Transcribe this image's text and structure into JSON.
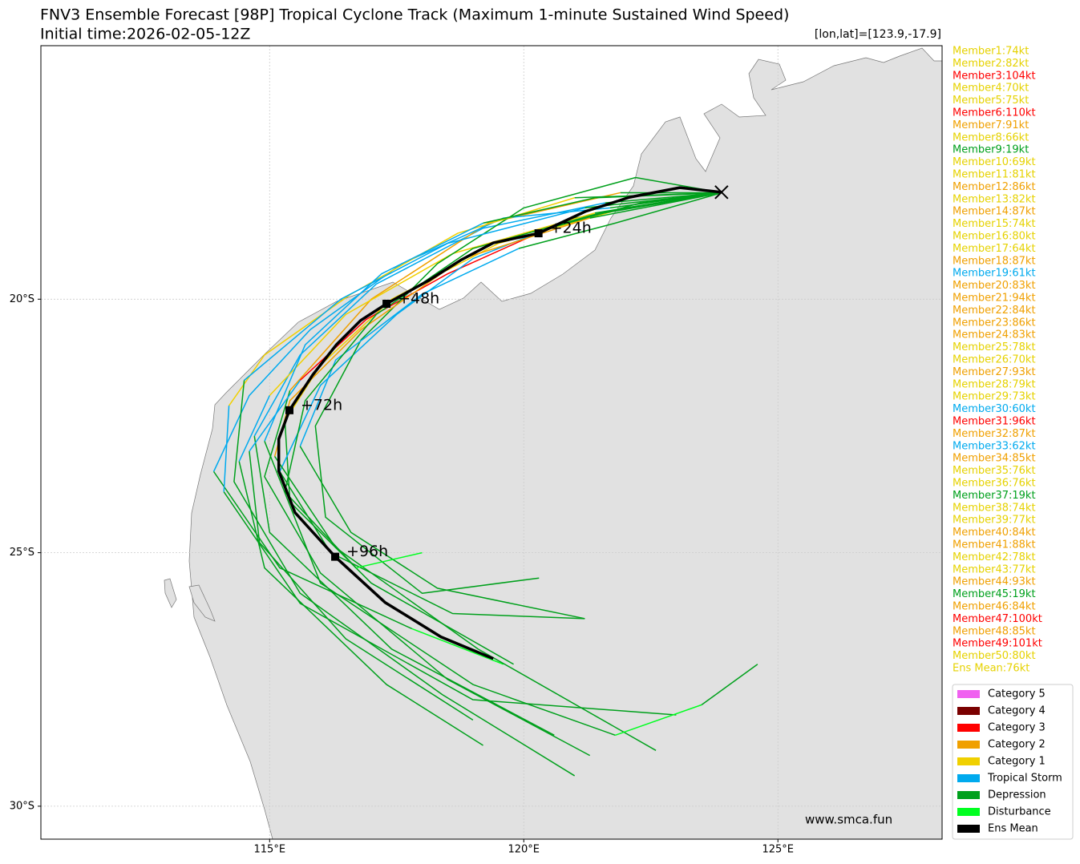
{
  "header": {
    "title": "FNV3 Ensemble Forecast [98P] Tropical Cyclone Track (Maximum 1-minute Sustained Wind Speed)",
    "subtitle": "Initial time:2026-02-05-12Z",
    "position": "[lon,lat]=[123.9,-17.9]",
    "watermark": "www.smca.fun"
  },
  "map": {
    "lonlim": [
      110.5,
      128.23
    ],
    "latlim": [
      -30.65,
      -15.0
    ],
    "grid": true,
    "xticks": [
      {
        "value": 115,
        "label": "115°E"
      },
      {
        "value": 120,
        "label": "120°E"
      },
      {
        "value": 125,
        "label": "125°E"
      }
    ],
    "yticks": [
      {
        "value": -20,
        "label": "20°S"
      },
      {
        "value": -25,
        "label": "25°S"
      },
      {
        "value": -30,
        "label": "30°S"
      }
    ],
    "member_tracks": [
      {
        "color": "#00a01c",
        "lon": [
          123.9,
          121.6
        ],
        "lat": [
          -17.9,
          -18.1
        ]
      },
      {
        "color": "#00aaee",
        "lon": [
          121.6,
          119.2,
          117.1,
          115.6,
          114.7
        ],
        "lat": [
          -18.1,
          -18.6,
          -19.7,
          -21.1,
          -22.7
        ]
      },
      {
        "color": "#00a01c",
        "lon": [
          114.7,
          115.0,
          117.4,
          120.6
        ],
        "lat": [
          -22.7,
          -24.6,
          -26.9,
          -28.6
        ]
      },
      {
        "color": "#00a01c",
        "lon": [
          123.9,
          122.0
        ],
        "lat": [
          -17.9,
          -18.2
        ]
      },
      {
        "color": "#f0d000",
        "lon": [
          122.0,
          119.5,
          117.4,
          116.0,
          115.3
        ],
        "lat": [
          -18.2,
          -18.9,
          -20.0,
          -21.3,
          -22.4
        ]
      },
      {
        "color": "#00a01c",
        "lon": [
          115.3,
          115.4,
          117.0,
          119.8
        ],
        "lat": [
          -22.4,
          -24.0,
          -25.6,
          -27.2
        ]
      },
      {
        "color": "#00a01c",
        "lon": [
          123.9,
          121.9
        ],
        "lat": [
          -17.9,
          -17.9
        ]
      },
      {
        "color": "#f0a000",
        "lon": [
          121.9,
          119.3,
          117.0,
          115.4
        ],
        "lat": [
          -17.9,
          -18.5,
          -20.0,
          -21.8
        ]
      },
      {
        "color": "#00a01c",
        "lon": [
          115.4,
          114.9,
          116.0,
          118.5,
          121.3
        ],
        "lat": [
          -21.8,
          -23.5,
          -25.4,
          -27.5,
          -29.0
        ]
      },
      {
        "color": "#00a01c",
        "lon": [
          123.9,
          122.3,
          120.5
        ],
        "lat": [
          -17.9,
          -18.1,
          -18.6
        ]
      },
      {
        "color": "#ff0000",
        "lon": [
          120.5,
          118.5,
          116.9,
          115.6
        ],
        "lat": [
          -18.6,
          -19.5,
          -20.4,
          -21.6
        ]
      },
      {
        "color": "#00aaee",
        "lon": [
          115.6,
          114.6
        ],
        "lat": [
          -21.6,
          -23.0
        ]
      },
      {
        "color": "#00a01c",
        "lon": [
          114.6,
          114.8,
          116.5,
          119.0
        ],
        "lat": [
          -23.0,
          -24.8,
          -26.7,
          -28.3
        ]
      },
      {
        "color": "#00a01c",
        "lon": [
          123.9,
          121.0
        ],
        "lat": [
          -17.9,
          -18.4
        ]
      },
      {
        "color": "#00aaee",
        "lon": [
          121.0,
          119.0,
          117.5,
          116.0,
          115.2
        ],
        "lat": [
          -18.4,
          -19.2,
          -20.3,
          -21.7,
          -23.4
        ]
      },
      {
        "color": "#00a01c",
        "lon": [
          115.2,
          116.2,
          118.6,
          121.2
        ],
        "lat": [
          -23.4,
          -25.0,
          -26.2,
          -26.3
        ]
      },
      {
        "color": "#00a01c",
        "lon": [
          123.9,
          121.4
        ],
        "lat": [
          -17.9,
          -18.3
        ]
      },
      {
        "color": "#f0d000",
        "lon": [
          121.4,
          118.6,
          116.5,
          115.0
        ],
        "lat": [
          -18.3,
          -19.1,
          -20.3,
          -21.9
        ]
      },
      {
        "color": "#00aaee",
        "lon": [
          115.0,
          114.4
        ],
        "lat": [
          -21.9,
          -23.2
        ]
      },
      {
        "color": "#00a01c",
        "lon": [
          114.4,
          114.9,
          117.3,
          119.2
        ],
        "lat": [
          -23.2,
          -25.3,
          -27.6,
          -28.8
        ]
      },
      {
        "color": "#00a01c",
        "lon": [
          123.9,
          122.2,
          120.0,
          118.3,
          116.8,
          115.9,
          116.1,
          118.0,
          120.3
        ],
        "lat": [
          -17.9,
          -17.6,
          -18.2,
          -19.3,
          -20.8,
          -22.5,
          -24.3,
          -25.8,
          -25.5
        ]
      },
      {
        "color": "#00a01c",
        "lon": [
          123.9,
          121.7
        ],
        "lat": [
          -17.9,
          -18.2
        ]
      },
      {
        "color": "#00aaee",
        "lon": [
          121.7,
          119.6,
          117.6,
          115.8,
          114.6,
          113.9
        ],
        "lat": [
          -18.2,
          -18.4,
          -19.3,
          -20.6,
          -21.9,
          -23.4
        ]
      },
      {
        "color": "#00a01c",
        "lon": [
          113.9,
          115.2,
          117.8
        ],
        "lat": [
          -23.4,
          -25.3,
          -26.5
        ]
      },
      {
        "color": "#00ff20",
        "lon": [
          117.8,
          119.6
        ],
        "lat": [
          -26.5,
          -27.2
        ]
      },
      {
        "color": "#00a01c",
        "lon": [
          123.9,
          121.3
        ],
        "lat": [
          -17.9,
          -18.4
        ]
      },
      {
        "color": "#f0a000",
        "lon": [
          121.3,
          118.8,
          116.8,
          115.4,
          115.1
        ],
        "lat": [
          -18.4,
          -19.2,
          -20.6,
          -22.0,
          -23.1
        ]
      },
      {
        "color": "#00a01c",
        "lon": [
          115.1,
          116.3,
          119.1,
          122.6
        ],
        "lat": [
          -23.1,
          -24.9,
          -26.9,
          -28.9
        ]
      },
      {
        "color": "#00a01c",
        "lon": [
          123.9,
          121.0
        ],
        "lat": [
          -17.9,
          -18.0
        ]
      },
      {
        "color": "#f0d000",
        "lon": [
          121.0,
          118.7,
          116.6,
          114.9,
          114.2
        ],
        "lat": [
          -18.0,
          -18.7,
          -19.9,
          -21.1,
          -22.1
        ]
      },
      {
        "color": "#00aaee",
        "lon": [
          114.2,
          114.1
        ],
        "lat": [
          -22.1,
          -23.8
        ]
      },
      {
        "color": "#00a01c",
        "lon": [
          114.1,
          115.6,
          119.0,
          123.0
        ],
        "lat": [
          -23.8,
          -26.0,
          -27.9,
          -28.2
        ]
      },
      {
        "color": "#00a01c",
        "lon": [
          123.9,
          121.8,
          119.9
        ],
        "lat": [
          -17.9,
          -18.5,
          -19.0
        ]
      },
      {
        "color": "#00aaee",
        "lon": [
          119.9,
          118.0,
          116.3,
          115.6
        ],
        "lat": [
          -19.0,
          -19.9,
          -21.2,
          -22.9
        ]
      },
      {
        "color": "#00a01c",
        "lon": [
          115.6,
          116.6,
          118.3,
          121.2
        ],
        "lat": [
          -22.9,
          -24.6,
          -25.7,
          -26.3
        ]
      },
      {
        "color": "#00a01c",
        "lon": [
          123.9,
          121.2
        ],
        "lat": [
          -17.9,
          -18.2
        ]
      },
      {
        "color": "#00aaee",
        "lon": [
          121.2,
          118.5,
          116.4,
          114.5
        ],
        "lat": [
          -18.2,
          -18.9,
          -20.0,
          -21.6
        ]
      },
      {
        "color": "#00a01c",
        "lon": [
          114.5,
          114.3,
          115.6,
          118.4,
          121.0
        ],
        "lat": [
          -21.6,
          -23.6,
          -25.8,
          -27.8,
          -29.4
        ]
      },
      {
        "color": "#00a01c",
        "lon": [
          123.9,
          121.5,
          119.0,
          117.1,
          115.7,
          115.3,
          116.7
        ],
        "lat": [
          -17.9,
          -18.3,
          -19.0,
          -20.3,
          -22.0,
          -23.8,
          -25.3
        ]
      },
      {
        "color": "#00ff20",
        "lon": [
          116.7,
          118.0
        ],
        "lat": [
          -25.3,
          -25.0
        ]
      },
      {
        "color": "#00a01c",
        "lon": [
          123.9,
          121.4,
          119.2
        ],
        "lat": [
          -17.9,
          -18.0,
          -18.5
        ]
      },
      {
        "color": "#00aaee",
        "lon": [
          119.2,
          117.2,
          115.7,
          114.9
        ],
        "lat": [
          -18.5,
          -19.5,
          -20.9,
          -22.8
        ]
      },
      {
        "color": "#00a01c",
        "lon": [
          114.9,
          116.0,
          119.0,
          121.8
        ],
        "lat": [
          -22.8,
          -25.6,
          -27.6,
          -28.6
        ]
      },
      {
        "color": "#00ff20",
        "lon": [
          121.8,
          123.5
        ],
        "lat": [
          -28.6,
          -28.0
        ]
      },
      {
        "color": "#00a01c",
        "lon": [
          123.5,
          124.6
        ],
        "lat": [
          -28.0,
          -27.2
        ]
      }
    ],
    "ens_mean": {
      "color": "#000000",
      "lon": [
        123.89,
        123.07,
        122.08,
        121.21,
        120.29,
        119.4,
        118.76,
        118.13,
        117.3,
        116.79,
        116.32,
        115.85,
        115.39,
        115.18,
        115.18,
        115.5,
        116.29,
        117.27,
        118.37,
        119.4
      ],
      "lat": [
        -17.89,
        -17.8,
        -17.99,
        -18.27,
        -18.7,
        -18.89,
        -19.23,
        -19.63,
        -20.09,
        -20.42,
        -20.89,
        -21.49,
        -22.19,
        -22.76,
        -23.39,
        -24.21,
        -25.08,
        -25.98,
        -26.66,
        -27.09
      ],
      "markers": [
        {
          "label": "+24h",
          "lon": 120.29,
          "lat": -18.7
        },
        {
          "label": "+48h",
          "lon": 117.3,
          "lat": -20.09
        },
        {
          "label": "+72h",
          "lon": 115.39,
          "lat": -22.19
        },
        {
          "label": "+96h",
          "lon": 116.29,
          "lat": -25.08
        }
      ]
    }
  },
  "member_labels": [
    {
      "text": "Member1:74kt",
      "color": "#e6d200"
    },
    {
      "text": "Member2:82kt",
      "color": "#e6d200"
    },
    {
      "text": "Member3:104kt",
      "color": "#ff0000"
    },
    {
      "text": "Member4:70kt",
      "color": "#e6d200"
    },
    {
      "text": "Member5:75kt",
      "color": "#e6d200"
    },
    {
      "text": "Member6:110kt",
      "color": "#ff0000"
    },
    {
      "text": "Member7:91kt",
      "color": "#f0a000"
    },
    {
      "text": "Member8:66kt",
      "color": "#e6d200"
    },
    {
      "text": "Member9:19kt",
      "color": "#00a01c"
    },
    {
      "text": "Member10:69kt",
      "color": "#e6d200"
    },
    {
      "text": "Member11:81kt",
      "color": "#e6d200"
    },
    {
      "text": "Member12:86kt",
      "color": "#f0a000"
    },
    {
      "text": "Member13:82kt",
      "color": "#e6d200"
    },
    {
      "text": "Member14:87kt",
      "color": "#f0a000"
    },
    {
      "text": "Member15:74kt",
      "color": "#e6d200"
    },
    {
      "text": "Member16:80kt",
      "color": "#e6d200"
    },
    {
      "text": "Member17:64kt",
      "color": "#e6d200"
    },
    {
      "text": "Member18:87kt",
      "color": "#f0a000"
    },
    {
      "text": "Member19:61kt",
      "color": "#00aaee"
    },
    {
      "text": "Member20:83kt",
      "color": "#f0a000"
    },
    {
      "text": "Member21:94kt",
      "color": "#f0a000"
    },
    {
      "text": "Member22:84kt",
      "color": "#f0a000"
    },
    {
      "text": "Member23:86kt",
      "color": "#f0a000"
    },
    {
      "text": "Member24:83kt",
      "color": "#f0a000"
    },
    {
      "text": "Member25:78kt",
      "color": "#e6d200"
    },
    {
      "text": "Member26:70kt",
      "color": "#e6d200"
    },
    {
      "text": "Member27:93kt",
      "color": "#f0a000"
    },
    {
      "text": "Member28:79kt",
      "color": "#e6d200"
    },
    {
      "text": "Member29:73kt",
      "color": "#e6d200"
    },
    {
      "text": "Member30:60kt",
      "color": "#00aaee"
    },
    {
      "text": "Member31:96kt",
      "color": "#ff0000"
    },
    {
      "text": "Member32:87kt",
      "color": "#f0a000"
    },
    {
      "text": "Member33:62kt",
      "color": "#00aaee"
    },
    {
      "text": "Member34:85kt",
      "color": "#f0a000"
    },
    {
      "text": "Member35:76kt",
      "color": "#e6d200"
    },
    {
      "text": "Member36:76kt",
      "color": "#e6d200"
    },
    {
      "text": "Member37:19kt",
      "color": "#00a01c"
    },
    {
      "text": "Member38:74kt",
      "color": "#e6d200"
    },
    {
      "text": "Member39:77kt",
      "color": "#e6d200"
    },
    {
      "text": "Member40:84kt",
      "color": "#f0a000"
    },
    {
      "text": "Member41:88kt",
      "color": "#f0a000"
    },
    {
      "text": "Member42:78kt",
      "color": "#e6d200"
    },
    {
      "text": "Member43:77kt",
      "color": "#e6d200"
    },
    {
      "text": "Member44:93kt",
      "color": "#f0a000"
    },
    {
      "text": "Member45:19kt",
      "color": "#00a01c"
    },
    {
      "text": "Member46:84kt",
      "color": "#f0a000"
    },
    {
      "text": "Member47:100kt",
      "color": "#ff0000"
    },
    {
      "text": "Member48:85kt",
      "color": "#f0a000"
    },
    {
      "text": "Member49:101kt",
      "color": "#ff0000"
    },
    {
      "text": "Member50:80kt",
      "color": "#e6d200"
    },
    {
      "text": "Ens Mean:76kt",
      "color": "#e6d200"
    }
  ],
  "legend": [
    {
      "label": "Category 5",
      "color": "#f060f0"
    },
    {
      "label": "Category 4",
      "color": "#7a0000"
    },
    {
      "label": "Category 3",
      "color": "#ff0000"
    },
    {
      "label": "Category 2",
      "color": "#f0a000"
    },
    {
      "label": "Category 1",
      "color": "#f0d000"
    },
    {
      "label": "Tropical Storm",
      "color": "#00aaee"
    },
    {
      "label": "Depression",
      "color": "#00a01c"
    },
    {
      "label": "Disturbance",
      "color": "#00ff20"
    },
    {
      "label": "Ens Mean",
      "color": "#000000"
    }
  ]
}
